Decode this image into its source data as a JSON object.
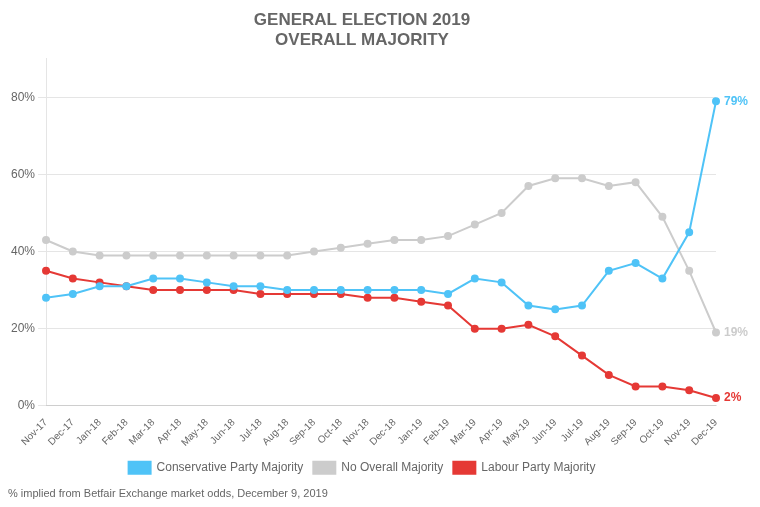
{
  "chart_data": {
    "type": "line",
    "title": "GENERAL ELECTION 2019",
    "subtitle": "OVERALL MAJORITY",
    "footnote": "% implied from Betfair Exchange market odds, December 9, 2019",
    "categories": [
      "Nov-17",
      "Dec-17",
      "Jan-18",
      "Feb-18",
      "Mar-18",
      "Apr-18",
      "May-18",
      "Jun-18",
      "Jul-18",
      "Aug-18",
      "Sep-18",
      "Oct-18",
      "Nov-18",
      "Dec-18",
      "Jan-19",
      "Feb-19",
      "Mar-19",
      "Apr-19",
      "May-19",
      "Jun-19",
      "Jul-19",
      "Aug-19",
      "Sep-19",
      "Oct-19",
      "Nov-19",
      "Dec-19"
    ],
    "series": [
      {
        "name": "Conservative Party Majority",
        "color": "#4fc3f7",
        "values": [
          28,
          29,
          31,
          31,
          33,
          33,
          32,
          31,
          31,
          30,
          30,
          30,
          30,
          30,
          30,
          29,
          33,
          32,
          26,
          25,
          26,
          35,
          37,
          33,
          45,
          79
        ]
      },
      {
        "name": "No Overall Majority",
        "color": "#cccccc",
        "values": [
          43,
          40,
          39,
          39,
          39,
          39,
          39,
          39,
          39,
          39,
          40,
          41,
          42,
          43,
          43,
          44,
          47,
          50,
          57,
          59,
          59,
          57,
          58,
          49,
          35,
          19
        ]
      },
      {
        "name": "Labour Party Majority",
        "color": "#e53935",
        "values": [
          35,
          33,
          32,
          31,
          30,
          30,
          30,
          30,
          29,
          29,
          29,
          29,
          28,
          28,
          27,
          26,
          20,
          20,
          21,
          18,
          13,
          8,
          5,
          5,
          4,
          2
        ]
      }
    ],
    "annotations": [
      {
        "series": "Conservative Party Majority",
        "x": "Dec-19",
        "y": 79,
        "text": "79%"
      },
      {
        "series": "No Overall Majority",
        "x": "Dec-19",
        "y": 19,
        "text": "19%"
      },
      {
        "series": "Labour Party Majority",
        "x": "Dec-19",
        "y": 2,
        "text": "2%"
      }
    ],
    "ylim": [
      0,
      90
    ],
    "yticks": [
      {
        "value": 0,
        "label": "0%"
      },
      {
        "value": 20,
        "label": "20%"
      },
      {
        "value": 40,
        "label": "40%"
      },
      {
        "value": 60,
        "label": "60%"
      },
      {
        "value": 80,
        "label": "80%"
      }
    ],
    "grid": true,
    "legend": "bottom",
    "marker": "circle"
  }
}
